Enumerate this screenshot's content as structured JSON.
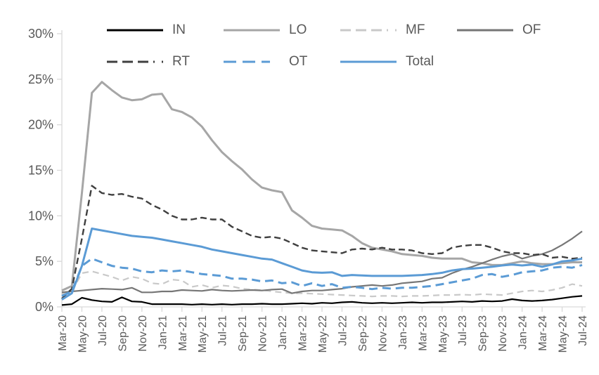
{
  "chart_data": {
    "type": "line",
    "title": "",
    "xlabel": "",
    "ylabel": "",
    "ylim": [
      0,
      30
    ],
    "grid": false,
    "legend_position": "top",
    "axis_color": "#d9d9d9",
    "label_color": "#595959",
    "ytick_labels": [
      "0%",
      "5%",
      "10%",
      "15%",
      "20%",
      "25%",
      "30%"
    ],
    "xtick_labels": [
      "Mar-20",
      "May-20",
      "Jul-20",
      "Sep-20",
      "Nov-20",
      "Jan-21",
      "Mar-21",
      "May-21",
      "Jul-21",
      "Sep-21",
      "Nov-21",
      "Jan-22",
      "Mar-22",
      "May-22",
      "Jul-22",
      "Sep-22",
      "Nov-22",
      "Jan-23",
      "Mar-23",
      "May-23",
      "Jul-23",
      "Sep-23",
      "Nov-23",
      "Jan-24",
      "Mar-24",
      "May-24",
      "Jul-24"
    ],
    "x": [
      "Mar-20",
      "Apr-20",
      "May-20",
      "Jun-20",
      "Jul-20",
      "Aug-20",
      "Sep-20",
      "Oct-20",
      "Nov-20",
      "Dec-20",
      "Jan-21",
      "Feb-21",
      "Mar-21",
      "Apr-21",
      "May-21",
      "Jun-21",
      "Jul-21",
      "Aug-21",
      "Sep-21",
      "Oct-21",
      "Nov-21",
      "Dec-21",
      "Jan-22",
      "Feb-22",
      "Mar-22",
      "Apr-22",
      "May-22",
      "Jun-22",
      "Jul-22",
      "Aug-22",
      "Sep-22",
      "Oct-22",
      "Nov-22",
      "Dec-22",
      "Jan-23",
      "Feb-23",
      "Mar-23",
      "Apr-23",
      "May-23",
      "Jun-23",
      "Jul-23",
      "Aug-23",
      "Sep-23",
      "Oct-23",
      "Nov-23",
      "Dec-23",
      "Jan-24",
      "Feb-24",
      "Mar-24",
      "Apr-24",
      "May-24",
      "Jun-24",
      "Jul-24"
    ],
    "series": [
      {
        "name": "IN",
        "color": "#000000",
        "style": "solid",
        "width": 2.2,
        "dash": null,
        "legend_dash": null,
        "values": [
          0.2,
          0.3,
          1.0,
          0.75,
          0.6,
          0.55,
          1.05,
          0.6,
          0.55,
          0.3,
          0.3,
          0.3,
          0.3,
          0.25,
          0.3,
          0.25,
          0.3,
          0.25,
          0.3,
          0.3,
          0.35,
          0.3,
          0.3,
          0.35,
          0.4,
          0.35,
          0.45,
          0.4,
          0.5,
          0.55,
          0.45,
          0.4,
          0.45,
          0.4,
          0.45,
          0.5,
          0.45,
          0.5,
          0.5,
          0.55,
          0.6,
          0.55,
          0.65,
          0.6,
          0.65,
          0.85,
          0.7,
          0.65,
          0.7,
          0.8,
          0.95,
          1.1,
          1.2
        ]
      },
      {
        "name": "LO",
        "color": "#a6a6a6",
        "style": "solid",
        "width": 3,
        "dash": null,
        "legend_dash": null,
        "values": [
          1.8,
          2.3,
          12.5,
          23.5,
          24.7,
          23.8,
          23.0,
          22.7,
          22.8,
          23.3,
          23.4,
          21.7,
          21.4,
          20.8,
          19.8,
          18.3,
          17.0,
          16.0,
          15.1,
          14.0,
          13.1,
          12.8,
          12.6,
          10.6,
          9.8,
          8.9,
          8.6,
          8.5,
          8.4,
          7.8,
          7.0,
          6.5,
          6.3,
          6.1,
          5.8,
          5.7,
          5.6,
          5.4,
          5.3,
          5.3,
          5.3,
          4.9,
          4.8,
          4.6,
          4.6,
          4.8,
          5.0,
          4.8,
          4.7,
          4.7,
          4.8,
          4.9,
          4.9
        ]
      },
      {
        "name": "MF",
        "color": "#c9c9c9",
        "style": "dashed",
        "width": 2.2,
        "dash": "9 6",
        "legend_dash": "15 7 15 7 15 7 2 10",
        "values": [
          1.4,
          1.7,
          3.7,
          3.9,
          3.6,
          3.3,
          2.9,
          3.3,
          3.1,
          2.6,
          2.5,
          3.0,
          2.9,
          2.2,
          2.4,
          2.1,
          2.35,
          2.25,
          2.0,
          1.9,
          1.85,
          1.7,
          1.6,
          1.5,
          1.5,
          1.45,
          1.4,
          1.35,
          1.3,
          1.25,
          1.2,
          1.15,
          1.2,
          1.2,
          1.15,
          1.2,
          1.2,
          1.25,
          1.3,
          1.3,
          1.35,
          1.3,
          1.4,
          1.35,
          1.3,
          1.5,
          1.7,
          1.8,
          1.7,
          1.85,
          2.1,
          2.5,
          2.3
        ]
      },
      {
        "name": "OF",
        "color": "#767676",
        "style": "solid",
        "width": 2.2,
        "dash": null,
        "legend_dash": null,
        "values": [
          1.6,
          1.7,
          1.8,
          1.9,
          2.0,
          1.95,
          1.9,
          2.1,
          1.6,
          1.6,
          1.7,
          1.7,
          1.85,
          1.8,
          1.75,
          1.9,
          1.8,
          1.75,
          1.8,
          1.85,
          1.8,
          1.9,
          1.95,
          1.5,
          1.7,
          1.8,
          1.8,
          1.9,
          2.0,
          2.2,
          2.3,
          2.4,
          2.3,
          2.4,
          2.6,
          2.7,
          2.8,
          3.1,
          3.2,
          3.7,
          4.1,
          4.4,
          4.8,
          5.2,
          5.55,
          5.8,
          5.3,
          5.6,
          5.8,
          6.2,
          6.8,
          7.5,
          8.3
        ]
      },
      {
        "name": "RT",
        "color": "#3f3f3f",
        "style": "dashed",
        "width": 2.4,
        "dash": "9 5",
        "legend_dash": "15 7 15 7 15 7 2 10",
        "values": [
          0.9,
          2.0,
          7.5,
          13.3,
          12.5,
          12.3,
          12.4,
          12.1,
          11.9,
          11.2,
          10.7,
          10.0,
          9.6,
          9.6,
          9.8,
          9.6,
          9.6,
          8.8,
          8.3,
          7.8,
          7.6,
          7.7,
          7.5,
          7.0,
          6.5,
          6.2,
          6.1,
          6.0,
          5.9,
          6.3,
          6.4,
          6.3,
          6.5,
          6.3,
          6.3,
          6.2,
          5.9,
          5.8,
          5.9,
          6.5,
          6.7,
          6.8,
          6.8,
          6.5,
          6.1,
          5.9,
          5.9,
          5.7,
          5.8,
          5.4,
          5.5,
          5.3,
          5.4
        ]
      },
      {
        "name": "OT",
        "color": "#5b9bd5",
        "style": "dashed",
        "width": 3,
        "dash": "12 7",
        "legend_dash": "18 9 18 9 12 14",
        "values": [
          1.2,
          1.7,
          4.5,
          5.3,
          4.9,
          4.5,
          4.3,
          4.2,
          3.9,
          3.8,
          4.0,
          3.9,
          4.0,
          3.8,
          3.6,
          3.5,
          3.4,
          3.1,
          3.1,
          3.0,
          2.8,
          2.9,
          2.6,
          2.7,
          2.3,
          2.6,
          2.3,
          2.5,
          2.1,
          2.2,
          2.1,
          1.95,
          2.1,
          2.0,
          2.1,
          2.1,
          2.2,
          2.3,
          2.5,
          2.7,
          2.9,
          3.1,
          3.5,
          3.6,
          3.3,
          3.5,
          3.8,
          3.9,
          4.0,
          4.3,
          4.4,
          4.3,
          4.6
        ]
      },
      {
        "name": "Total",
        "color": "#5b9bd5",
        "style": "solid",
        "width": 3,
        "dash": null,
        "legend_dash": null,
        "values": [
          0.8,
          1.5,
          4.5,
          8.6,
          8.4,
          8.2,
          8.0,
          7.8,
          7.7,
          7.6,
          7.4,
          7.2,
          7.0,
          6.8,
          6.6,
          6.3,
          6.1,
          5.9,
          5.7,
          5.5,
          5.3,
          5.2,
          4.8,
          4.4,
          4.0,
          3.8,
          3.75,
          3.8,
          3.4,
          3.5,
          3.45,
          3.4,
          3.4,
          3.4,
          3.4,
          3.45,
          3.5,
          3.6,
          3.75,
          4.0,
          4.15,
          4.2,
          4.3,
          4.4,
          4.55,
          4.65,
          4.55,
          4.65,
          4.4,
          4.65,
          5.0,
          5.1,
          5.3
        ]
      }
    ]
  }
}
